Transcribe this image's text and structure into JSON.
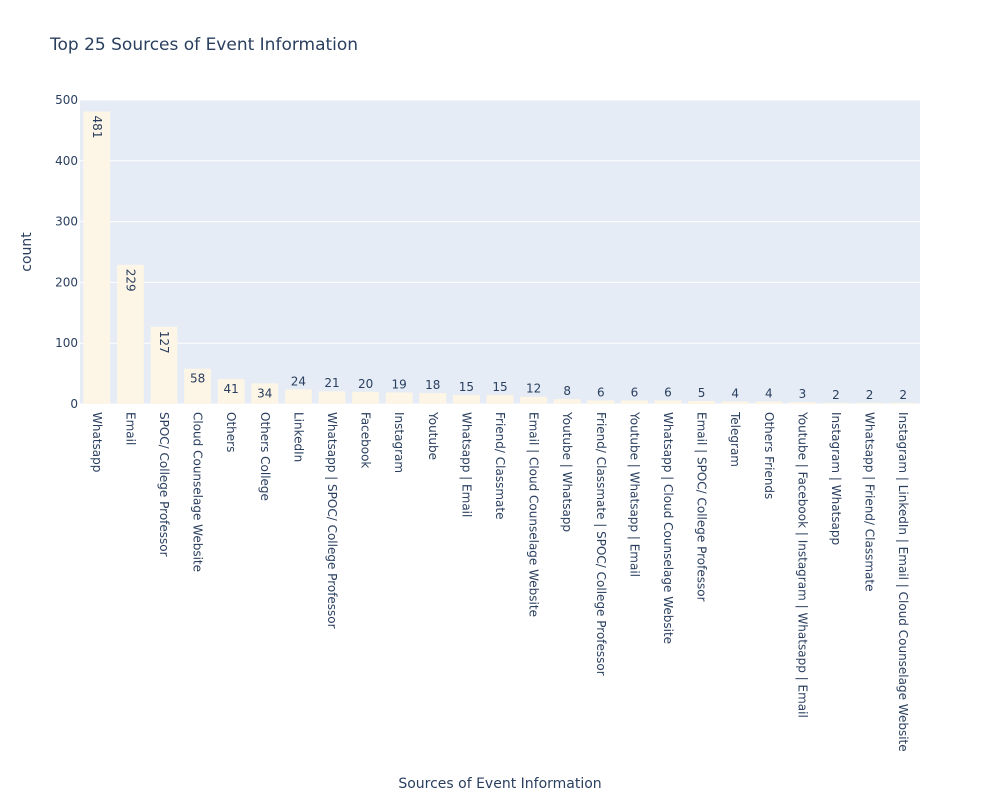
{
  "chart_data": {
    "type": "bar",
    "title": "Top 25 Sources of Event Information",
    "xlabel": "Sources of Event Information",
    "ylabel": "count",
    "ylim": [
      0,
      500
    ],
    "yticks": [
      0,
      100,
      200,
      300,
      400,
      500
    ],
    "grid": true,
    "colors": {
      "plot_bg": "#E5ECF6",
      "bar": "#FDF5E6",
      "text": "#2a3f5f",
      "grid": "#ffffff"
    },
    "categories": [
      "Whatsapp",
      "Email",
      "SPOC/ College Professor",
      "Cloud Counselage Website",
      "Others",
      "Others College",
      "LinkedIn",
      "Whatsapp | SPOC/ College Professor",
      "Facebook",
      "Instagram",
      "Youtube",
      "Whatsapp | Email",
      "Friend/ Classmate",
      "Email | Cloud Counselage Website",
      "Youtube | Whatsapp",
      "Friend/ Classmate | SPOC/ College Professor",
      "Youtube | Whatsapp | Email",
      "Whatsapp | Cloud Counselage Website",
      "Email | SPOC/ College Professor",
      "Telegram",
      "Others Friends",
      "Youtube | Facebook | Instagram | Whatsapp | Email",
      "Instagram | Whatsapp",
      "Whatsapp | Friend/ Classmate",
      "Instagram | LinkedIn | Email | Cloud Counselage Website"
    ],
    "values": [
      481,
      229,
      127,
      58,
      41,
      34,
      24,
      21,
      20,
      19,
      18,
      15,
      15,
      12,
      8,
      6,
      6,
      6,
      5,
      4,
      4,
      3,
      2,
      2,
      2
    ]
  }
}
